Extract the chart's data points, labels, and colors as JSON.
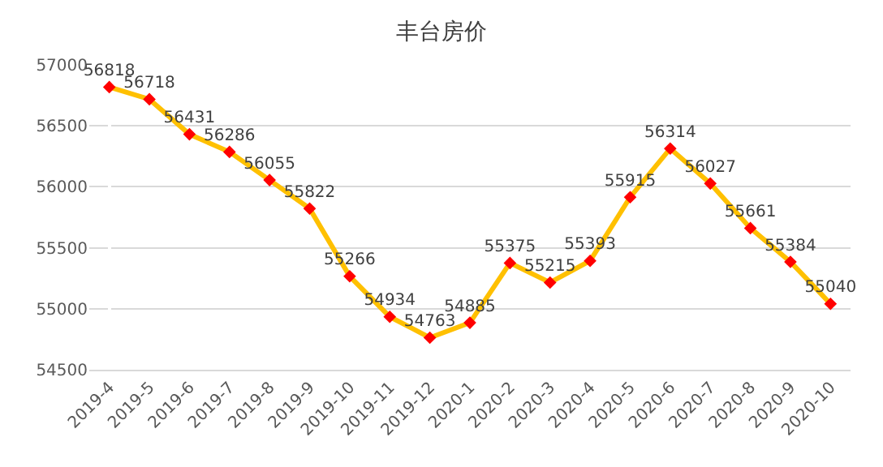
{
  "chart_data": {
    "type": "line",
    "title": "丰台房价",
    "categories": [
      "2019-4",
      "2019-5",
      "2019-6",
      "2019-7",
      "2019-8",
      "2019-9",
      "2019-10",
      "2019-11",
      "2019-12",
      "2020-1",
      "2020-2",
      "2020-3",
      "2020-4",
      "2020-5",
      "2020-6",
      "2020-7",
      "2020-8",
      "2020-9",
      "2020-10"
    ],
    "series": [
      {
        "color": "#ffc000",
        "colors": [
          "#ff0000",
          "#ff0000",
          "#ff0000",
          "#ff0000",
          "#ff0000",
          "#ff0000",
          "#ff0000",
          "#ff0000",
          "#ff0000",
          "#ff0000",
          "#ff0000",
          "#ff0000",
          "#ff0000",
          "#ff0000",
          "#ff0000",
          "#ff0000",
          "#ff0000",
          "#ff0000",
          "#ff0000"
        ],
        "values": [
          56818,
          56718,
          56431,
          56286,
          56055,
          55822,
          55266,
          54934,
          54763,
          54885,
          55375,
          55215,
          55393,
          55915,
          56314,
          56027,
          55661,
          55384,
          55040
        ]
      }
    ],
    "ylim": [
      54500,
      57000
    ],
    "yticks": [
      54500,
      55000,
      55500,
      56000,
      56500,
      57000
    ],
    "grid": "y",
    "marker": "diamond",
    "line_style": "solid",
    "data_labels": true,
    "legend": false
  }
}
